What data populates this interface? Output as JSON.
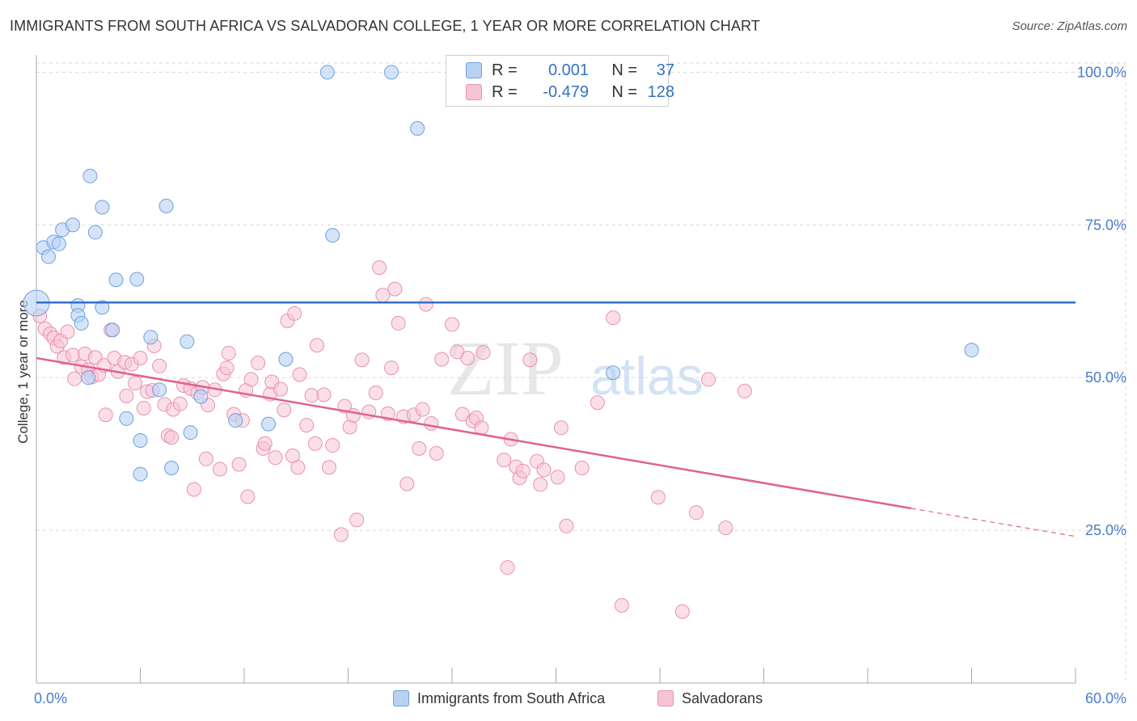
{
  "title": "IMMIGRANTS FROM SOUTH AFRICA VS SALVADORAN COLLEGE, 1 YEAR OR MORE CORRELATION CHART",
  "source": "Source: ZipAtlas.com",
  "watermark": {
    "zip": "ZIP",
    "atlas": "atlas"
  },
  "legend": {
    "rows": [
      {
        "r_label": "R =",
        "r_value": "0.001",
        "n_label": "N =",
        "n_value": "37"
      },
      {
        "r_label": "R =",
        "r_value": "-0.479",
        "n_label": "N =",
        "n_value": "128"
      }
    ]
  },
  "bottom_legend": [
    "Immigrants from South Africa",
    "Salvadorans"
  ],
  "colors": {
    "blue_fill": "#b8d2f4",
    "blue_stroke": "#6f9fdf",
    "blue_line": "#3470c6",
    "pink_fill": "#f7c4d6",
    "pink_stroke": "#e891b0",
    "pink_line": "#e0628f",
    "axis_text": "#4a7cc9",
    "grid": "#d8d8d8"
  },
  "chart_data": {
    "type": "scatter",
    "title": "IMMIGRANTS FROM SOUTH AFRICA VS SALVADORAN COLLEGE, 1 YEAR OR MORE CORRELATION CHART",
    "xlabel": "",
    "ylabel": "College, 1 year or more",
    "xlim": [
      0,
      60
    ],
    "ylim": [
      0,
      101.5
    ],
    "x_tick_labels": [
      "0.0%",
      "60.0%"
    ],
    "y_ticks": [
      25,
      50,
      75,
      100
    ],
    "y_tick_labels": [
      "25.0%",
      "50.0%",
      "75.0%",
      "100.0%"
    ],
    "grid": true,
    "series": [
      {
        "name": "Immigrants from South Africa",
        "color": "#b8d2f4",
        "points": [
          [
            0.0,
            62.2
          ],
          [
            0.4,
            71.3
          ],
          [
            0.7,
            69.8
          ],
          [
            1.0,
            72.2
          ],
          [
            1.3,
            71.9
          ],
          [
            1.5,
            74.2
          ],
          [
            2.1,
            75.0
          ],
          [
            2.4,
            61.8
          ],
          [
            2.4,
            60.2
          ],
          [
            2.6,
            58.9
          ],
          [
            3.1,
            83.0
          ],
          [
            3.4,
            73.8
          ],
          [
            3.8,
            61.5
          ],
          [
            3.8,
            77.9
          ],
          [
            4.4,
            57.8
          ],
          [
            4.6,
            66.0
          ],
          [
            5.2,
            43.3
          ],
          [
            5.8,
            66.1
          ],
          [
            6.0,
            39.7
          ],
          [
            6.0,
            34.2
          ],
          [
            6.6,
            56.6
          ],
          [
            7.1,
            48.0
          ],
          [
            7.5,
            78.1
          ],
          [
            7.8,
            35.2
          ],
          [
            8.7,
            55.9
          ],
          [
            8.9,
            41.0
          ],
          [
            9.5,
            46.9
          ],
          [
            11.5,
            43.0
          ],
          [
            13.4,
            42.4
          ],
          [
            14.4,
            53.0
          ],
          [
            16.8,
            100.0
          ],
          [
            17.1,
            73.3
          ],
          [
            20.5,
            100.0
          ],
          [
            22.0,
            90.8
          ],
          [
            33.3,
            50.8
          ],
          [
            54.0,
            54.5
          ],
          [
            3.0,
            50.0
          ]
        ]
      },
      {
        "name": "Salvadorans",
        "color": "#f7c4d6",
        "points": [
          [
            0.2,
            60.1
          ],
          [
            0.5,
            58.0
          ],
          [
            0.8,
            57.2
          ],
          [
            1.0,
            56.5
          ],
          [
            1.2,
            55.1
          ],
          [
            1.4,
            56.0
          ],
          [
            1.6,
            53.3
          ],
          [
            1.8,
            57.5
          ],
          [
            2.1,
            53.7
          ],
          [
            2.2,
            49.8
          ],
          [
            2.6,
            51.8
          ],
          [
            2.8,
            53.9
          ],
          [
            3.0,
            51.3
          ],
          [
            3.2,
            50.1
          ],
          [
            3.4,
            53.3
          ],
          [
            3.6,
            50.5
          ],
          [
            3.9,
            52.0
          ],
          [
            4.0,
            43.9
          ],
          [
            4.3,
            57.8
          ],
          [
            4.5,
            53.2
          ],
          [
            4.7,
            51.0
          ],
          [
            5.1,
            52.5
          ],
          [
            5.2,
            47.0
          ],
          [
            5.5,
            52.2
          ],
          [
            5.7,
            49.1
          ],
          [
            6.0,
            53.2
          ],
          [
            6.2,
            45.0
          ],
          [
            6.4,
            47.7
          ],
          [
            6.7,
            47.9
          ],
          [
            6.8,
            55.2
          ],
          [
            7.1,
            51.9
          ],
          [
            7.4,
            45.6
          ],
          [
            7.6,
            40.5
          ],
          [
            7.8,
            40.2
          ],
          [
            7.9,
            44.8
          ],
          [
            8.3,
            45.7
          ],
          [
            8.5,
            48.7
          ],
          [
            8.9,
            48.2
          ],
          [
            9.1,
            31.7
          ],
          [
            9.3,
            47.5
          ],
          [
            9.6,
            48.4
          ],
          [
            9.8,
            36.7
          ],
          [
            9.9,
            45.5
          ],
          [
            10.3,
            48.0
          ],
          [
            10.6,
            35.0
          ],
          [
            10.8,
            50.6
          ],
          [
            11.0,
            51.6
          ],
          [
            11.1,
            54.0
          ],
          [
            11.4,
            44.0
          ],
          [
            11.7,
            35.8
          ],
          [
            11.9,
            43.0
          ],
          [
            12.1,
            47.9
          ],
          [
            12.2,
            30.5
          ],
          [
            12.4,
            49.7
          ],
          [
            12.8,
            52.4
          ],
          [
            13.1,
            38.4
          ],
          [
            13.2,
            39.2
          ],
          [
            13.5,
            47.3
          ],
          [
            13.6,
            49.3
          ],
          [
            13.8,
            36.9
          ],
          [
            14.1,
            48.1
          ],
          [
            14.3,
            44.7
          ],
          [
            14.5,
            59.3
          ],
          [
            14.8,
            37.2
          ],
          [
            14.9,
            60.5
          ],
          [
            15.1,
            35.3
          ],
          [
            15.2,
            50.5
          ],
          [
            15.6,
            42.2
          ],
          [
            15.9,
            47.1
          ],
          [
            16.1,
            39.2
          ],
          [
            16.2,
            55.3
          ],
          [
            16.6,
            47.2
          ],
          [
            16.9,
            35.3
          ],
          [
            17.1,
            38.9
          ],
          [
            17.6,
            24.3
          ],
          [
            17.8,
            45.3
          ],
          [
            18.1,
            41.9
          ],
          [
            18.3,
            43.8
          ],
          [
            18.5,
            26.7
          ],
          [
            18.8,
            52.9
          ],
          [
            19.2,
            44.4
          ],
          [
            19.6,
            47.5
          ],
          [
            19.8,
            68.0
          ],
          [
            20.0,
            63.5
          ],
          [
            20.3,
            44.1
          ],
          [
            20.5,
            51.6
          ],
          [
            20.7,
            64.5
          ],
          [
            20.9,
            58.9
          ],
          [
            21.2,
            43.6
          ],
          [
            21.4,
            32.6
          ],
          [
            21.8,
            43.9
          ],
          [
            22.1,
            38.4
          ],
          [
            22.3,
            44.8
          ],
          [
            22.5,
            62.0
          ],
          [
            22.8,
            42.5
          ],
          [
            23.1,
            37.6
          ],
          [
            23.4,
            53.0
          ],
          [
            24.0,
            58.7
          ],
          [
            24.3,
            54.2
          ],
          [
            24.6,
            44.0
          ],
          [
            24.9,
            53.2
          ],
          [
            25.2,
            42.9
          ],
          [
            25.4,
            43.4
          ],
          [
            25.7,
            41.8
          ],
          [
            27.0,
            36.5
          ],
          [
            27.4,
            39.9
          ],
          [
            27.7,
            35.4
          ],
          [
            27.9,
            33.6
          ],
          [
            28.1,
            34.7
          ],
          [
            28.5,
            52.9
          ],
          [
            28.9,
            36.3
          ],
          [
            29.1,
            32.5
          ],
          [
            29.3,
            34.9
          ],
          [
            30.1,
            33.7
          ],
          [
            30.3,
            41.8
          ],
          [
            30.6,
            25.7
          ],
          [
            31.5,
            35.2
          ],
          [
            32.4,
            45.9
          ],
          [
            33.3,
            59.8
          ],
          [
            33.8,
            12.7
          ],
          [
            35.9,
            30.4
          ],
          [
            37.3,
            11.7
          ],
          [
            38.1,
            27.9
          ],
          [
            38.8,
            49.7
          ],
          [
            39.8,
            25.4
          ],
          [
            40.9,
            47.8
          ],
          [
            25.8,
            54.1
          ],
          [
            27.2,
            18.9
          ]
        ]
      }
    ],
    "trend_lines": [
      {
        "series": "Immigrants from South Africa",
        "x": [
          0,
          60
        ],
        "y": [
          62.3,
          62.3
        ]
      },
      {
        "series": "Salvadorans",
        "x": [
          0,
          50.5
        ],
        "y": [
          53.2,
          28.6
        ],
        "dashed_extension": {
          "x": [
            50.5,
            60
          ],
          "y": [
            28.6,
            24.0
          ]
        }
      }
    ],
    "legend_stats": [
      {
        "series": "Immigrants from South Africa",
        "R": 0.001,
        "N": 37
      },
      {
        "series": "Salvadorans",
        "R": -0.479,
        "N": 128
      }
    ]
  }
}
